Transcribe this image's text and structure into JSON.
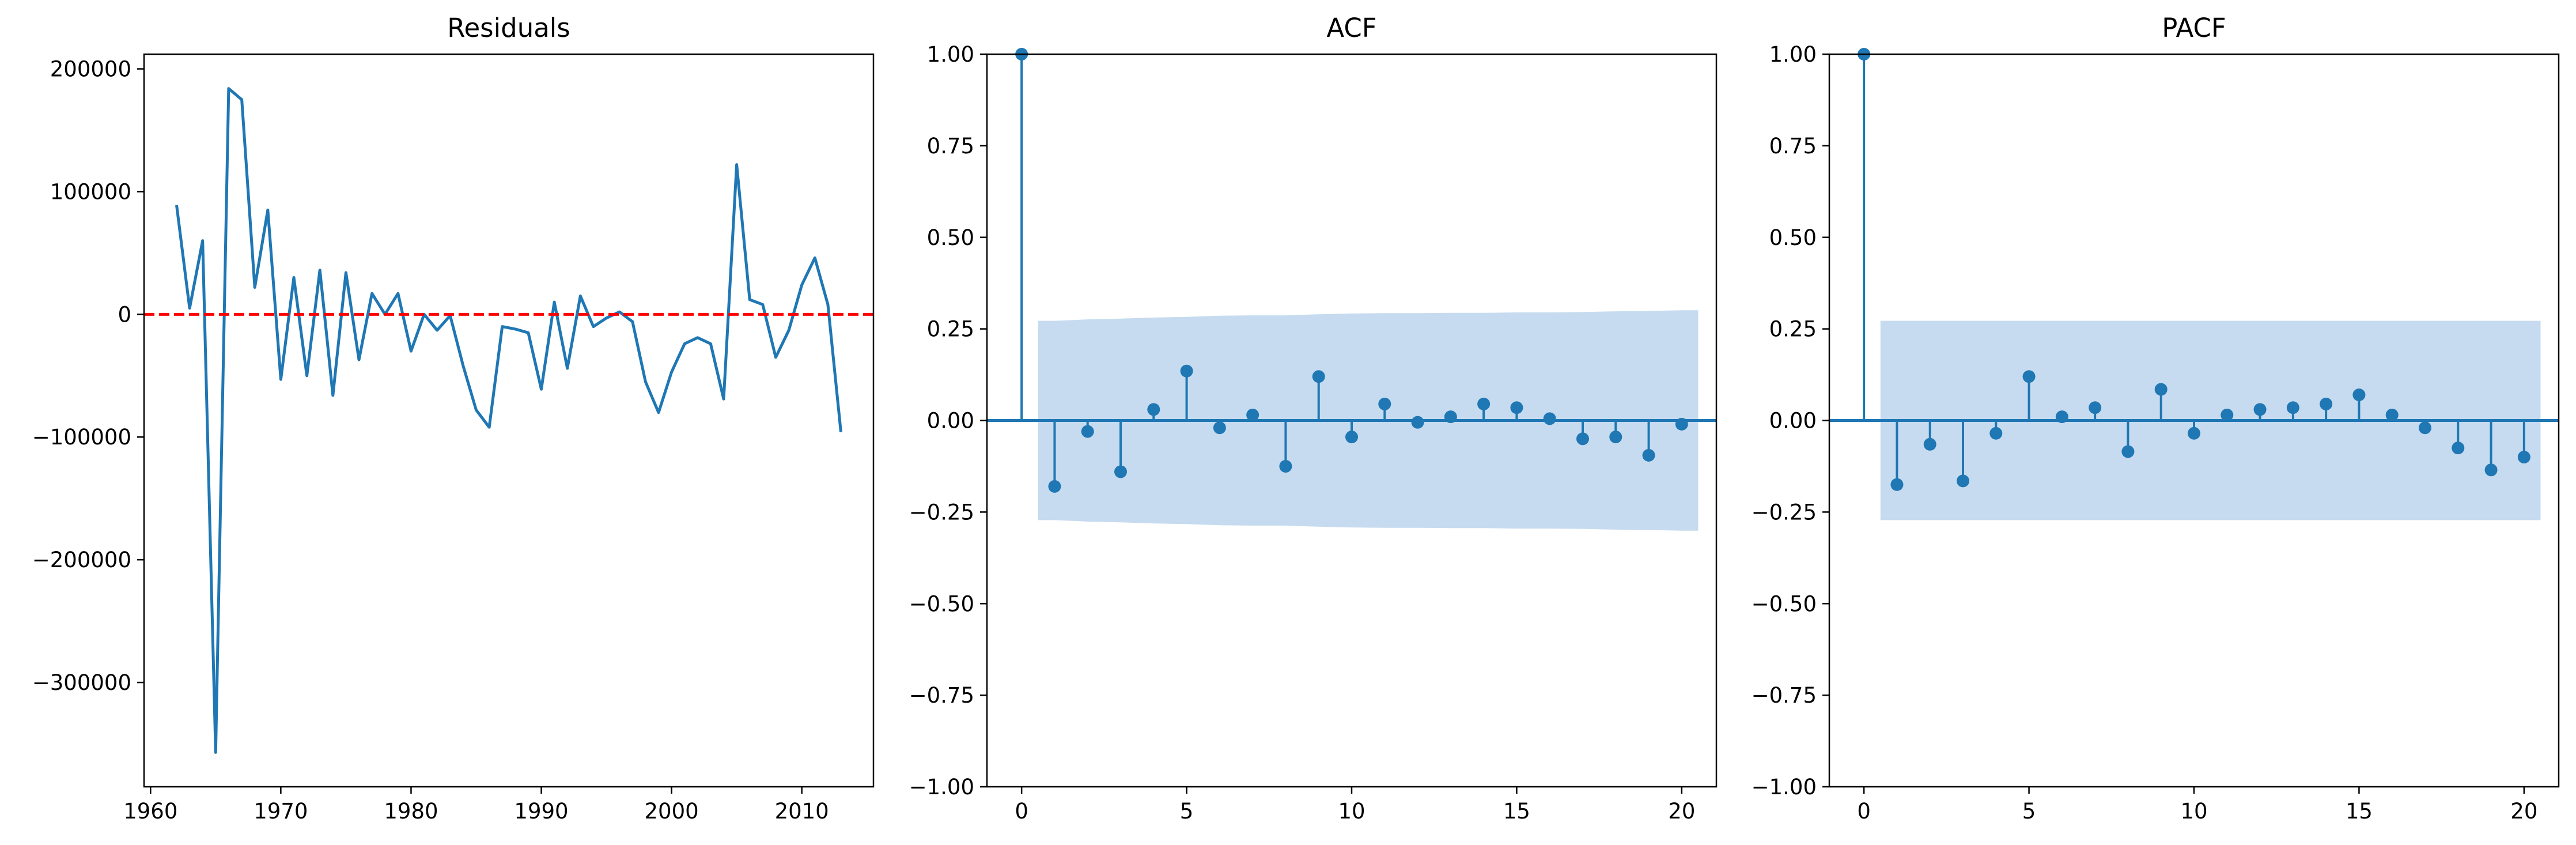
{
  "colors": {
    "line": "#1f77b4",
    "band": "#c6dbef",
    "zero_line": "#ff0000",
    "axis": "#000000"
  },
  "chart_data": [
    {
      "type": "line",
      "title": "Residuals",
      "xlabel": "",
      "ylabel": "",
      "xlim": [
        1959.5,
        2015.5
      ],
      "ylim": [
        -385000,
        212000
      ],
      "xticks": [
        1960,
        1970,
        1980,
        1990,
        2000,
        2010
      ],
      "xtick_labels": [
        "1960",
        "1970",
        "1980",
        "1990",
        "2000",
        "2010"
      ],
      "yticks": [
        -300000,
        -200000,
        -100000,
        0,
        100000,
        200000
      ],
      "ytick_labels": [
        "−300000",
        "−200000",
        "−100000",
        "0",
        "100000",
        "200000"
      ],
      "reference_line": {
        "y": 0,
        "style": "dashed",
        "color": "red"
      },
      "x": [
        1962,
        1963,
        1964,
        1965,
        1966,
        1967,
        1968,
        1969,
        1970,
        1971,
        1972,
        1973,
        1974,
        1975,
        1976,
        1977,
        1978,
        1979,
        1980,
        1981,
        1982,
        1983,
        1984,
        1985,
        1986,
        1987,
        1988,
        1989,
        1990,
        1991,
        1992,
        1993,
        1994,
        1995,
        1996,
        1997,
        1998,
        1999,
        2000,
        2001,
        2002,
        2003,
        2004,
        2005,
        2006,
        2007,
        2008,
        2009,
        2010,
        2011,
        2012,
        2013
      ],
      "y": [
        89000,
        5000,
        60000,
        -357000,
        184000,
        175000,
        22000,
        85000,
        -53000,
        30000,
        -50000,
        36000,
        -66000,
        34000,
        -37000,
        17000,
        0,
        17000,
        -30000,
        0,
        -13000,
        -1000,
        -42000,
        -78000,
        -92000,
        -10000,
        -12000,
        -15000,
        -61000,
        10000,
        -44000,
        15000,
        -10000,
        -3000,
        2000,
        -6000,
        -55000,
        -80000,
        -47000,
        -24000,
        -19000,
        -24000,
        -69000,
        122000,
        12000,
        8000,
        -35000,
        -13000,
        24000,
        46000,
        8000,
        -96000
      ]
    },
    {
      "type": "stem",
      "title": "ACF",
      "xlim": [
        -1.05,
        21.05
      ],
      "ylim": [
        -1.0,
        1.0
      ],
      "xticks": [
        0,
        5,
        10,
        15,
        20
      ],
      "xtick_labels": [
        "0",
        "5",
        "10",
        "15",
        "20"
      ],
      "yticks": [
        -1.0,
        -0.75,
        -0.5,
        -0.25,
        0.0,
        0.25,
        0.5,
        0.75,
        1.0
      ],
      "ytick_labels": [
        "−1.00",
        "−0.75",
        "−0.50",
        "−0.25",
        "0.00",
        "0.25",
        "0.50",
        "0.75",
        "1.00"
      ],
      "lags": [
        0,
        1,
        2,
        3,
        4,
        5,
        6,
        7,
        8,
        9,
        10,
        11,
        12,
        13,
        14,
        15,
        16,
        17,
        18,
        19,
        20
      ],
      "values": [
        1.0,
        -0.18,
        -0.03,
        -0.14,
        0.03,
        0.135,
        -0.02,
        0.015,
        -0.125,
        0.12,
        -0.045,
        0.045,
        -0.005,
        0.01,
        0.045,
        0.035,
        0.005,
        -0.05,
        -0.045,
        -0.095,
        -0.01
      ],
      "confint_lags": [
        0.5,
        1,
        2,
        3,
        4,
        5,
        6,
        7,
        8,
        9,
        10,
        11,
        12,
        13,
        14,
        15,
        16,
        17,
        18,
        19,
        20,
        20.5
      ],
      "confint_upper": [
        0.272,
        0.272,
        0.276,
        0.278,
        0.281,
        0.283,
        0.286,
        0.287,
        0.287,
        0.29,
        0.292,
        0.293,
        0.293,
        0.294,
        0.294,
        0.295,
        0.295,
        0.296,
        0.298,
        0.299,
        0.301,
        0.301
      ],
      "confint_lower": [
        -0.272,
        -0.272,
        -0.276,
        -0.278,
        -0.281,
        -0.283,
        -0.286,
        -0.287,
        -0.287,
        -0.29,
        -0.292,
        -0.293,
        -0.293,
        -0.294,
        -0.294,
        -0.295,
        -0.295,
        -0.296,
        -0.298,
        -0.299,
        -0.301,
        -0.301
      ]
    },
    {
      "type": "stem",
      "title": "PACF",
      "xlim": [
        -1.05,
        21.05
      ],
      "ylim": [
        -1.0,
        1.0
      ],
      "xticks": [
        0,
        5,
        10,
        15,
        20
      ],
      "xtick_labels": [
        "0",
        "5",
        "10",
        "15",
        "20"
      ],
      "yticks": [
        -1.0,
        -0.75,
        -0.5,
        -0.25,
        0.0,
        0.25,
        0.5,
        0.75,
        1.0
      ],
      "ytick_labels": [
        "−1.00",
        "−0.75",
        "−0.50",
        "−0.25",
        "0.00",
        "0.25",
        "0.50",
        "0.75",
        "1.00"
      ],
      "lags": [
        0,
        1,
        2,
        3,
        4,
        5,
        6,
        7,
        8,
        9,
        10,
        11,
        12,
        13,
        14,
        15,
        16,
        17,
        18,
        19,
        20
      ],
      "values": [
        1.0,
        -0.175,
        -0.065,
        -0.165,
        -0.035,
        0.12,
        0.01,
        0.035,
        -0.085,
        0.085,
        -0.035,
        0.015,
        0.03,
        0.035,
        0.045,
        0.07,
        0.015,
        -0.02,
        -0.075,
        -0.135,
        -0.1
      ],
      "confint_lags": [
        0.5,
        20.5
      ],
      "confint_upper": [
        0.272,
        0.272
      ],
      "confint_lower": [
        -0.272,
        -0.272
      ]
    }
  ]
}
